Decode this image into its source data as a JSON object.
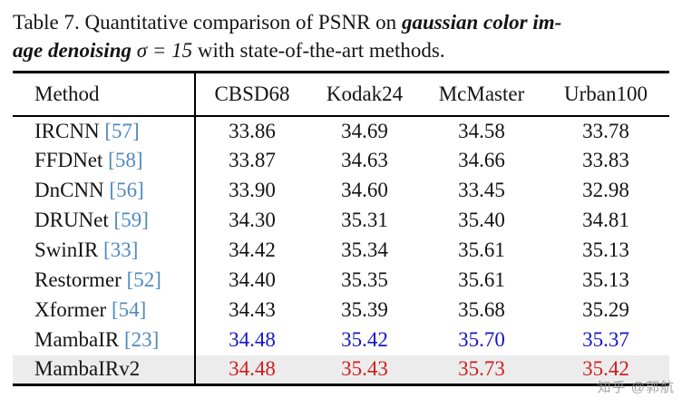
{
  "caption": {
    "line1_regular": "Table 7. Quantitative comparison of PSNR on ",
    "line1_emphasis": "gaussian color im-",
    "line2_emphasis": "age denoising ",
    "line2_sigma": "σ = 15",
    "line2_regular": " with state-of-the-art methods."
  },
  "table": {
    "headers": [
      "Method",
      "CBSD68",
      "Kodak24",
      "McMaster",
      "Urban100"
    ],
    "rows": [
      {
        "method": "IRCNN",
        "cite": "[57]",
        "values": [
          "33.86",
          "34.69",
          "34.58",
          "33.78"
        ],
        "value_color": "black",
        "highlight": false
      },
      {
        "method": "FFDNet",
        "cite": "[58]",
        "values": [
          "33.87",
          "34.63",
          "34.66",
          "33.83"
        ],
        "value_color": "black",
        "highlight": false
      },
      {
        "method": "DnCNN",
        "cite": "[56]",
        "values": [
          "33.90",
          "34.60",
          "33.45",
          "32.98"
        ],
        "value_color": "black",
        "highlight": false
      },
      {
        "method": "DRUNet",
        "cite": "[59]",
        "values": [
          "34.30",
          "35.31",
          "35.40",
          "34.81"
        ],
        "value_color": "black",
        "highlight": false
      },
      {
        "method": "SwinIR",
        "cite": "[33]",
        "values": [
          "34.42",
          "35.34",
          "35.61",
          "35.13"
        ],
        "value_color": "black",
        "highlight": false
      },
      {
        "method": "Restormer",
        "cite": "[52]",
        "values": [
          "34.40",
          "35.35",
          "35.61",
          "35.13"
        ],
        "value_color": "black",
        "highlight": false
      },
      {
        "method": "Xformer",
        "cite": "[54]",
        "values": [
          "34.43",
          "35.39",
          "35.68",
          "35.29"
        ],
        "value_color": "black",
        "highlight": false
      },
      {
        "method": "MambaIR",
        "cite": "[23]",
        "values": [
          "34.48",
          "35.42",
          "35.70",
          "35.37"
        ],
        "value_color": "blue",
        "highlight": false
      },
      {
        "method": "MambaIRv2",
        "cite": "",
        "values": [
          "34.48",
          "35.43",
          "35.73",
          "35.42"
        ],
        "value_color": "red",
        "highlight": true
      }
    ]
  },
  "colors": {
    "citation": "#4e8abe",
    "blue_values": "#1515c8",
    "red_values": "#cf1d1d",
    "highlight_bg": "#ececec",
    "rule": "#000000"
  },
  "watermark": "知乎 @郭航"
}
